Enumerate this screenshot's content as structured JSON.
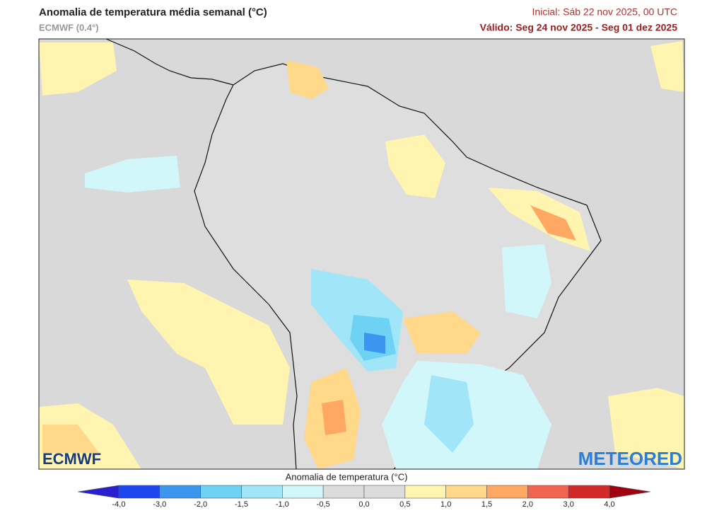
{
  "header": {
    "title": "Anomalia de temperatura média semanal (°C)",
    "model": "ECMWF (0.4°)",
    "initial": "Inicial: Sáb 22 nov 2025, 00 UTC",
    "valid": "Válido: Seg 24 nov 2025 - Seg 01 dez 2025"
  },
  "map": {
    "logo_left": "ECMWF",
    "logo_right": "METEORED"
  },
  "legend": {
    "title": "Anomalia de temperatura (°C)",
    "ticks": [
      "-4,0",
      "-3,0",
      "-2,0",
      "-1,5",
      "-1,0",
      "-0,5",
      "0,0",
      "0,5",
      "1,0",
      "1,5",
      "2,0",
      "3,0",
      "4,0"
    ],
    "colors": [
      "#2a1fd0",
      "#1e46f0",
      "#3c96f0",
      "#6ed2f5",
      "#a0e6f8",
      "#d2f7fa",
      "#dcdcdc",
      "#dcdcdc",
      "#fff5b0",
      "#ffd88a",
      "#ffa864",
      "#f06450",
      "#d22828",
      "#a00010"
    ]
  }
}
